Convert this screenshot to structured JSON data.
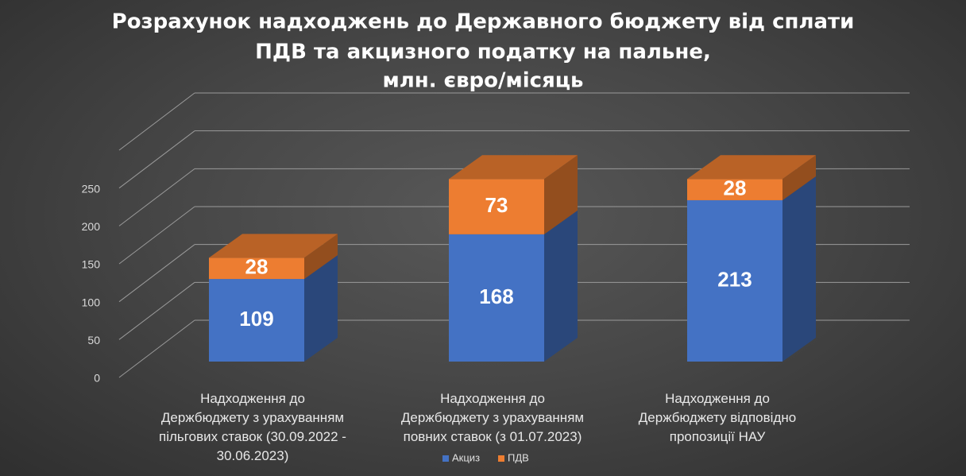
{
  "chart_data": {
    "type": "bar",
    "stacked": true,
    "three_d": true,
    "title_lines": [
      "Розрахунок надходжень до Державного бюджету від сплати",
      "ПДВ та акцизного податку на пальне,",
      "млн. євро/місяць"
    ],
    "categories": [
      [
        "Надходження до",
        "Держбюджету з урахуванням",
        "пільгових ставок (30.09.2022 -",
        "30.06.2023)"
      ],
      [
        "Надходження до",
        "Держбюджету з урахуванням",
        "повних ставок (з 01.07.2023)"
      ],
      [
        "Надходження до",
        "Держбюджету відповідно",
        "пропозиції НАУ"
      ]
    ],
    "series": [
      {
        "name": "Акциз",
        "values": [
          109,
          168,
          213
        ],
        "color": "#4472C4"
      },
      {
        "name": "ПДВ",
        "values": [
          28,
          73,
          28
        ],
        "color": "#ED7D31"
      }
    ],
    "yticks": [
      0,
      50,
      100,
      150,
      200,
      250
    ],
    "ylim": [
      0,
      300
    ],
    "grid": true,
    "legend_position": "bottom"
  }
}
